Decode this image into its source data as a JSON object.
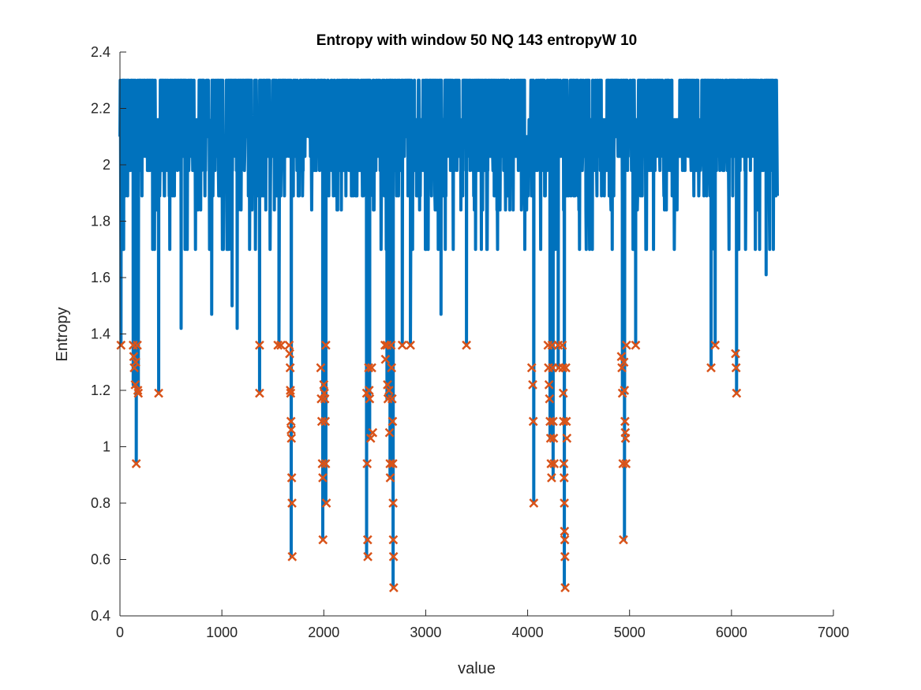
{
  "chart_data": {
    "type": "line",
    "title": "Entropy with window 50  NQ 143  entropyW 10",
    "xlabel": "value",
    "ylabel": "Entropy",
    "xlim": [
      0,
      7000
    ],
    "ylim": [
      0.4,
      2.4
    ],
    "xticks": [
      0,
      1000,
      2000,
      3000,
      4000,
      5000,
      6000,
      7000
    ],
    "yticks": [
      0.4,
      0.6,
      0.8,
      1,
      1.2,
      1.4,
      1.6,
      1.8,
      2,
      2.2,
      2.4
    ],
    "xtick_labels": [
      "0",
      "1000",
      "2000",
      "3000",
      "4000",
      "5000",
      "6000",
      "7000"
    ],
    "ytick_labels": [
      "0.4",
      "0.6",
      "0.8",
      "1",
      "1.2",
      "1.4",
      "1.6",
      "1.8",
      "2",
      "2.2",
      "2.4"
    ],
    "grid": false,
    "colors": {
      "line": "#0072BD",
      "marker": "#D95319",
      "axis": "#262626"
    },
    "series": [
      {
        "kind": "line",
        "x_start": 0,
        "x_end": 6450,
        "levels": [
          1.7,
          1.84,
          1.89,
          1.98,
          2.03,
          2.1,
          2.16,
          2.24,
          2.3
        ],
        "dips": [
          {
            "x": 10,
            "y": 1.36
          },
          {
            "x": 130,
            "y": 1.22
          },
          {
            "x": 160,
            "y": 0.94
          },
          {
            "x": 180,
            "y": 1.19
          },
          {
            "x": 380,
            "y": 1.19
          },
          {
            "x": 600,
            "y": 1.42
          },
          {
            "x": 900,
            "y": 1.47
          },
          {
            "x": 1100,
            "y": 1.5
          },
          {
            "x": 1150,
            "y": 1.42
          },
          {
            "x": 1370,
            "y": 1.19
          },
          {
            "x": 1560,
            "y": 1.36
          },
          {
            "x": 1680,
            "y": 0.61
          },
          {
            "x": 1990,
            "y": 0.67
          },
          {
            "x": 2020,
            "y": 0.8
          },
          {
            "x": 2420,
            "y": 0.61
          },
          {
            "x": 2450,
            "y": 1.03
          },
          {
            "x": 2620,
            "y": 1.17
          },
          {
            "x": 2650,
            "y": 0.89
          },
          {
            "x": 2680,
            "y": 0.5
          },
          {
            "x": 2770,
            "y": 1.36
          },
          {
            "x": 2850,
            "y": 1.36
          },
          {
            "x": 3150,
            "y": 1.47
          },
          {
            "x": 3400,
            "y": 1.36
          },
          {
            "x": 4060,
            "y": 0.8
          },
          {
            "x": 4220,
            "y": 1.03
          },
          {
            "x": 4250,
            "y": 0.89
          },
          {
            "x": 4300,
            "y": 1.28
          },
          {
            "x": 4360,
            "y": 0.5
          },
          {
            "x": 4930,
            "y": 1.19
          },
          {
            "x": 4950,
            "y": 0.67
          },
          {
            "x": 5060,
            "y": 1.36
          },
          {
            "x": 5800,
            "y": 1.28
          },
          {
            "x": 5840,
            "y": 1.36
          },
          {
            "x": 6050,
            "y": 1.19
          },
          {
            "x": 6340,
            "y": 1.61
          }
        ]
      },
      {
        "kind": "marker",
        "marker": "x",
        "points": [
          {
            "x": 10,
            "y": 1.36
          },
          {
            "x": 130,
            "y": 1.36
          },
          {
            "x": 135,
            "y": 1.32
          },
          {
            "x": 140,
            "y": 1.28
          },
          {
            "x": 150,
            "y": 1.22
          },
          {
            "x": 155,
            "y": 1.3
          },
          {
            "x": 160,
            "y": 0.94
          },
          {
            "x": 170,
            "y": 1.36
          },
          {
            "x": 175,
            "y": 1.2
          },
          {
            "x": 180,
            "y": 1.19
          },
          {
            "x": 380,
            "y": 1.19
          },
          {
            "x": 1370,
            "y": 1.36
          },
          {
            "x": 1370,
            "y": 1.19
          },
          {
            "x": 1550,
            "y": 1.36
          },
          {
            "x": 1580,
            "y": 1.36
          },
          {
            "x": 1660,
            "y": 1.36
          },
          {
            "x": 1665,
            "y": 1.33
          },
          {
            "x": 1670,
            "y": 1.28
          },
          {
            "x": 1672,
            "y": 1.2
          },
          {
            "x": 1675,
            "y": 1.19
          },
          {
            "x": 1678,
            "y": 1.09
          },
          {
            "x": 1680,
            "y": 1.06
          },
          {
            "x": 1682,
            "y": 1.03
          },
          {
            "x": 1685,
            "y": 0.89
          },
          {
            "x": 1688,
            "y": 0.8
          },
          {
            "x": 1690,
            "y": 0.61
          },
          {
            "x": 1970,
            "y": 1.28
          },
          {
            "x": 1975,
            "y": 1.17
          },
          {
            "x": 1980,
            "y": 1.09
          },
          {
            "x": 1985,
            "y": 0.94
          },
          {
            "x": 1990,
            "y": 0.89
          },
          {
            "x": 1992,
            "y": 0.67
          },
          {
            "x": 2000,
            "y": 1.22
          },
          {
            "x": 2005,
            "y": 1.19
          },
          {
            "x": 2010,
            "y": 1.17
          },
          {
            "x": 2015,
            "y": 1.09
          },
          {
            "x": 2018,
            "y": 0.94
          },
          {
            "x": 2020,
            "y": 1.36
          },
          {
            "x": 2025,
            "y": 0.8
          },
          {
            "x": 2420,
            "y": 1.19
          },
          {
            "x": 2425,
            "y": 0.94
          },
          {
            "x": 2430,
            "y": 0.67
          },
          {
            "x": 2432,
            "y": 0.61
          },
          {
            "x": 2440,
            "y": 1.28
          },
          {
            "x": 2445,
            "y": 1.2
          },
          {
            "x": 2450,
            "y": 1.17
          },
          {
            "x": 2460,
            "y": 1.03
          },
          {
            "x": 2470,
            "y": 1.28
          },
          {
            "x": 2480,
            "y": 1.05
          },
          {
            "x": 2600,
            "y": 1.36
          },
          {
            "x": 2605,
            "y": 1.31
          },
          {
            "x": 2620,
            "y": 1.36
          },
          {
            "x": 2625,
            "y": 1.22
          },
          {
            "x": 2630,
            "y": 1.17
          },
          {
            "x": 2640,
            "y": 1.2
          },
          {
            "x": 2645,
            "y": 1.05
          },
          {
            "x": 2650,
            "y": 0.94
          },
          {
            "x": 2652,
            "y": 0.89
          },
          {
            "x": 2660,
            "y": 1.36
          },
          {
            "x": 2665,
            "y": 1.28
          },
          {
            "x": 2670,
            "y": 1.17
          },
          {
            "x": 2675,
            "y": 1.09
          },
          {
            "x": 2678,
            "y": 0.94
          },
          {
            "x": 2680,
            "y": 0.8
          },
          {
            "x": 2682,
            "y": 0.67
          },
          {
            "x": 2684,
            "y": 0.61
          },
          {
            "x": 2686,
            "y": 0.5
          },
          {
            "x": 2770,
            "y": 1.36
          },
          {
            "x": 2850,
            "y": 1.36
          },
          {
            "x": 3400,
            "y": 1.36
          },
          {
            "x": 4040,
            "y": 1.28
          },
          {
            "x": 4050,
            "y": 1.22
          },
          {
            "x": 4055,
            "y": 1.09
          },
          {
            "x": 4060,
            "y": 0.8
          },
          {
            "x": 4200,
            "y": 1.36
          },
          {
            "x": 4205,
            "y": 1.28
          },
          {
            "x": 4210,
            "y": 1.22
          },
          {
            "x": 4215,
            "y": 1.17
          },
          {
            "x": 4220,
            "y": 1.09
          },
          {
            "x": 4225,
            "y": 1.03
          },
          {
            "x": 4230,
            "y": 0.94
          },
          {
            "x": 4235,
            "y": 0.89
          },
          {
            "x": 4240,
            "y": 1.36
          },
          {
            "x": 4245,
            "y": 1.28
          },
          {
            "x": 4250,
            "y": 1.09
          },
          {
            "x": 4255,
            "y": 1.03
          },
          {
            "x": 4260,
            "y": 0.94
          },
          {
            "x": 4300,
            "y": 1.36
          },
          {
            "x": 4305,
            "y": 1.28
          },
          {
            "x": 4340,
            "y": 1.36
          },
          {
            "x": 4345,
            "y": 1.28
          },
          {
            "x": 4350,
            "y": 1.19
          },
          {
            "x": 4352,
            "y": 1.09
          },
          {
            "x": 4355,
            "y": 0.94
          },
          {
            "x": 4358,
            "y": 0.89
          },
          {
            "x": 4360,
            "y": 0.8
          },
          {
            "x": 4362,
            "y": 0.7
          },
          {
            "x": 4364,
            "y": 0.67
          },
          {
            "x": 4366,
            "y": 0.61
          },
          {
            "x": 4368,
            "y": 0.5
          },
          {
            "x": 4375,
            "y": 1.28
          },
          {
            "x": 4380,
            "y": 1.09
          },
          {
            "x": 4385,
            "y": 1.03
          },
          {
            "x": 4920,
            "y": 1.32
          },
          {
            "x": 4925,
            "y": 1.28
          },
          {
            "x": 4930,
            "y": 1.19
          },
          {
            "x": 4935,
            "y": 0.94
          },
          {
            "x": 4940,
            "y": 0.67
          },
          {
            "x": 4945,
            "y": 1.3
          },
          {
            "x": 4950,
            "y": 1.2
          },
          {
            "x": 4955,
            "y": 1.09
          },
          {
            "x": 4958,
            "y": 1.05
          },
          {
            "x": 4960,
            "y": 1.03
          },
          {
            "x": 4965,
            "y": 0.94
          },
          {
            "x": 4970,
            "y": 1.36
          },
          {
            "x": 5060,
            "y": 1.36
          },
          {
            "x": 5800,
            "y": 1.28
          },
          {
            "x": 5840,
            "y": 1.36
          },
          {
            "x": 6040,
            "y": 1.33
          },
          {
            "x": 6045,
            "y": 1.28
          },
          {
            "x": 6050,
            "y": 1.19
          }
        ]
      }
    ]
  }
}
